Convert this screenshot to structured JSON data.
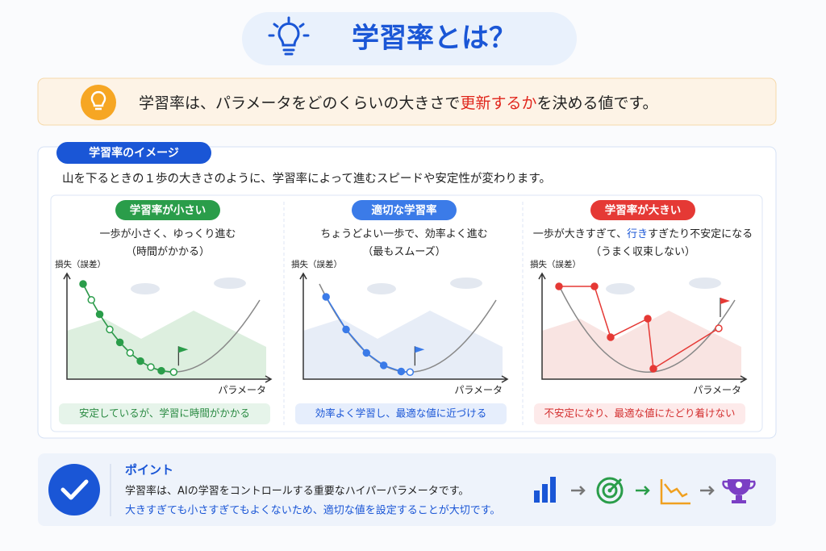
{
  "header": {
    "title": "学習率とは？"
  },
  "definition": {
    "before": "学習率は、パラメータをどのくらいの大きさで",
    "highlight": "更新するか",
    "after": "を決める値です。"
  },
  "image": {
    "label": "学習率のイメージ",
    "description": "山を下るときの１歩の大きさのように、学習率によって進むスピードや安定性が変わります。",
    "panels": [
      {
        "badge": "学習率が小さい",
        "caption": [
          [
            "一歩が小さく、ゆっくり進む"
          ],
          [
            "（時間がかかる）"
          ]
        ],
        "y_axis": "損失（誤差）",
        "x_axis": "パラメータ",
        "summary": "安定しているが、学習に時間がかかる"
      },
      {
        "badge": "適切な学習率",
        "caption": [
          [
            "ちょうどよい一歩で、効率よく進む"
          ],
          [
            "（最もスムーズ）"
          ]
        ],
        "y_axis": "損失（誤差）",
        "x_axis": "パラメータ",
        "summary": "効率よく学習し、最適な値に近づける"
      },
      {
        "badge": "学習率が大きい",
        "caption": [
          [
            "一歩が大きすぎて、",
            "行き",
            "すぎたり不安定になる"
          ],
          [
            "（うまく収束しない）"
          ]
        ],
        "y_axis": "損失（誤差）",
        "x_axis": "パラメータ",
        "summary": "不安定になり、最適な値にたどり着けない"
      }
    ]
  },
  "point": {
    "title": "ポイント",
    "lines": [
      "学習率は、AIの学習をコントロールする重要なハイパーパラメータです。",
      "大きすぎても小さすぎてもよくないため、適切な値を設定することが大切です。"
    ]
  }
}
